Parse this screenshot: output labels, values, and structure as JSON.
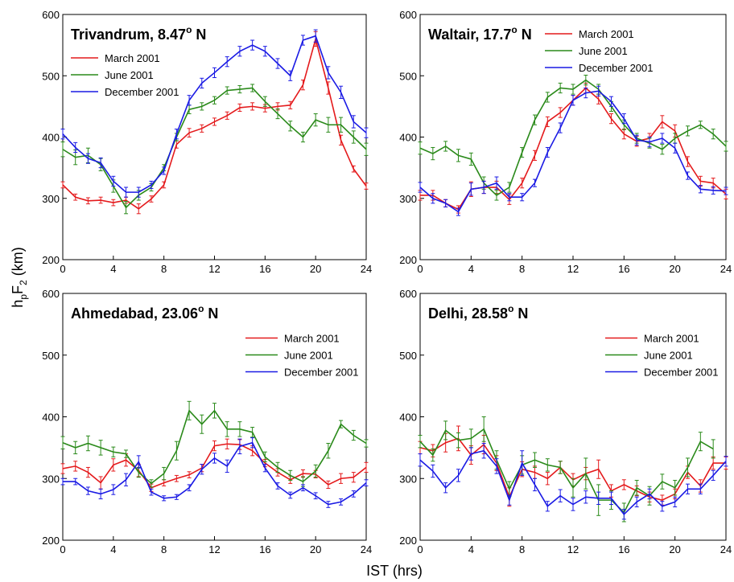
{
  "figure": {
    "xlabel": "IST (hrs)",
    "ylabel": [
      "h",
      "p",
      "F",
      "2",
      " (km)"
    ]
  },
  "chart_data": [
    {
      "type": "line",
      "title": [
        "Trivandrum, 8.47",
        "o",
        " N"
      ],
      "legend": "upper left",
      "x": [
        0,
        1,
        2,
        3,
        4,
        5,
        6,
        7,
        8,
        9,
        10,
        11,
        12,
        13,
        14,
        15,
        16,
        17,
        18,
        19,
        20,
        21,
        22,
        23,
        24
      ],
      "xlim": [
        0,
        24
      ],
      "xticks": [
        0,
        4,
        8,
        12,
        16,
        20,
        24
      ],
      "ylim": [
        200,
        600
      ],
      "yticks": [
        200,
        300,
        400,
        500,
        600
      ],
      "series": [
        {
          "name": "March 2001",
          "color": "#e41a1c",
          "values": [
            322,
            302,
            296,
            297,
            293,
            297,
            283,
            299,
            322,
            388,
            407,
            414,
            425,
            435,
            448,
            450,
            447,
            450,
            452,
            485,
            560,
            480,
            395,
            348,
            320
          ],
          "errors": [
            5,
            5,
            5,
            5,
            5,
            5,
            8,
            5,
            5,
            6,
            7,
            6,
            6,
            6,
            6,
            6,
            6,
            6,
            6,
            8,
            12,
            10,
            8,
            5,
            5
          ]
        },
        {
          "name": "June 2001",
          "color": "#2a8a1a",
          "values": [
            380,
            367,
            370,
            355,
            320,
            285,
            305,
            318,
            350,
            400,
            445,
            450,
            460,
            476,
            478,
            480,
            458,
            438,
            418,
            400,
            428,
            420,
            420,
            400,
            380
          ],
          "errors": [
            12,
            12,
            12,
            10,
            10,
            10,
            8,
            6,
            5,
            6,
            7,
            6,
            6,
            6,
            6,
            6,
            8,
            8,
            8,
            8,
            10,
            12,
            12,
            10,
            10
          ]
        },
        {
          "name": "December 2001",
          "color": "#1a1ae4",
          "values": [
            405,
            383,
            365,
            358,
            328,
            310,
            310,
            322,
            345,
            405,
            460,
            488,
            505,
            523,
            540,
            550,
            540,
            520,
            500,
            558,
            565,
            505,
            473,
            425,
            407
          ],
          "errors": [
            8,
            8,
            8,
            8,
            8,
            8,
            8,
            6,
            6,
            8,
            8,
            8,
            8,
            8,
            8,
            8,
            8,
            8,
            8,
            8,
            10,
            10,
            10,
            10,
            8
          ]
        }
      ]
    },
    {
      "type": "line",
      "title": [
        "Waltair, 17.7",
        "o",
        " N"
      ],
      "legend": "upper right",
      "x": [
        0,
        1,
        2,
        3,
        4,
        5,
        6,
        7,
        8,
        9,
        10,
        11,
        12,
        13,
        14,
        15,
        16,
        17,
        18,
        19,
        20,
        21,
        22,
        23,
        24
      ],
      "xlim": [
        0,
        24
      ],
      "xticks": [
        0,
        4,
        8,
        12,
        16,
        20,
        24
      ],
      "ylim": [
        200,
        600
      ],
      "yticks": [
        200,
        300,
        400,
        500,
        600
      ],
      "series": [
        {
          "name": "March 2001",
          "color": "#e41a1c",
          "values": [
            305,
            305,
            292,
            282,
            315,
            318,
            318,
            298,
            325,
            370,
            425,
            440,
            460,
            480,
            462,
            430,
            405,
            393,
            398,
            425,
            410,
            360,
            328,
            325,
            307
          ],
          "errors": [
            8,
            8,
            6,
            6,
            12,
            10,
            10,
            8,
            8,
            8,
            8,
            8,
            8,
            8,
            8,
            8,
            8,
            8,
            8,
            10,
            10,
            8,
            8,
            8,
            8
          ]
        },
        {
          "name": "June 2001",
          "color": "#2a8a1a",
          "values": [
            382,
            373,
            385,
            370,
            364,
            325,
            305,
            318,
            375,
            428,
            465,
            480,
            478,
            493,
            478,
            450,
            420,
            398,
            390,
            380,
            398,
            410,
            420,
            405,
            385
          ],
          "errors": [
            10,
            10,
            8,
            10,
            10,
            10,
            8,
            8,
            8,
            8,
            8,
            8,
            8,
            8,
            8,
            8,
            8,
            8,
            8,
            8,
            8,
            8,
            6,
            8,
            8
          ]
        },
        {
          "name": "December 2001",
          "color": "#1a1ae4",
          "values": [
            318,
            300,
            292,
            278,
            315,
            318,
            325,
            302,
            302,
            325,
            375,
            415,
            460,
            472,
            475,
            458,
            430,
            395,
            392,
            398,
            382,
            337,
            315,
            313,
            312
          ],
          "errors": [
            8,
            8,
            6,
            6,
            10,
            10,
            10,
            6,
            6,
            6,
            8,
            8,
            8,
            8,
            8,
            8,
            8,
            8,
            8,
            8,
            8,
            6,
            6,
            6,
            6
          ]
        }
      ]
    },
    {
      "type": "line",
      "title": [
        "Ahmedabad, 23.06",
        "o",
        " N"
      ],
      "legend": "center right",
      "x": [
        0,
        1,
        2,
        3,
        4,
        5,
        6,
        7,
        8,
        9,
        10,
        11,
        12,
        13,
        14,
        15,
        16,
        17,
        18,
        19,
        20,
        21,
        22,
        23,
        24
      ],
      "xlim": [
        0,
        24
      ],
      "xticks": [
        0,
        4,
        8,
        12,
        16,
        20,
        24
      ],
      "ylim": [
        200,
        600
      ],
      "yticks": [
        200,
        300,
        400,
        500,
        600
      ],
      "series": [
        {
          "name": "March 2001",
          "color": "#e41a1c",
          "values": [
            316,
            320,
            310,
            293,
            322,
            330,
            313,
            285,
            293,
            300,
            306,
            317,
            353,
            356,
            355,
            345,
            325,
            310,
            298,
            308,
            307,
            290,
            300,
            302,
            318
          ],
          "errors": [
            8,
            8,
            8,
            10,
            10,
            10,
            10,
            6,
            5,
            5,
            5,
            6,
            8,
            8,
            8,
            8,
            6,
            6,
            6,
            6,
            6,
            6,
            8,
            8,
            8
          ]
        },
        {
          "name": "June 2001",
          "color": "#2a8a1a",
          "values": [
            358,
            350,
            357,
            350,
            343,
            340,
            310,
            292,
            308,
            345,
            410,
            388,
            410,
            380,
            380,
            375,
            335,
            318,
            305,
            295,
            312,
            345,
            388,
            370,
            357
          ],
          "errors": [
            10,
            10,
            12,
            12,
            8,
            6,
            8,
            6,
            10,
            15,
            15,
            15,
            12,
            12,
            12,
            8,
            8,
            8,
            8,
            8,
            10,
            12,
            6,
            8,
            6
          ]
        },
        {
          "name": "December 2001",
          "color": "#1a1ae4",
          "values": [
            295,
            295,
            280,
            275,
            282,
            298,
            327,
            278,
            268,
            270,
            285,
            315,
            333,
            320,
            352,
            358,
            317,
            288,
            273,
            285,
            272,
            258,
            262,
            275,
            293
          ],
          "errors": [
            5,
            5,
            6,
            8,
            8,
            10,
            10,
            5,
            4,
            4,
            5,
            8,
            8,
            10,
            12,
            8,
            6,
            5,
            5,
            5,
            5,
            5,
            5,
            5,
            5
          ]
        }
      ]
    },
    {
      "type": "line",
      "title": [
        "Delhi, 28.58",
        "o",
        " N"
      ],
      "legend": "center right",
      "x": [
        0,
        1,
        2,
        3,
        4,
        5,
        6,
        7,
        8,
        9,
        10,
        11,
        12,
        13,
        14,
        15,
        16,
        17,
        18,
        19,
        20,
        21,
        22,
        23,
        24
      ],
      "xlim": [
        0,
        24
      ],
      "xticks": [
        0,
        4,
        8,
        12,
        16,
        20,
        24
      ],
      "ylim": [
        200,
        600
      ],
      "yticks": [
        200,
        300,
        400,
        500,
        600
      ],
      "series": [
        {
          "name": "March 2001",
          "color": "#e41a1c",
          "values": [
            350,
            345,
            358,
            365,
            338,
            355,
            325,
            270,
            315,
            310,
            300,
            318,
            298,
            308,
            315,
            280,
            290,
            280,
            270,
            265,
            275,
            310,
            288,
            325,
            325
          ],
          "errors": [
            10,
            10,
            15,
            20,
            15,
            15,
            12,
            15,
            12,
            10,
            10,
            10,
            10,
            10,
            15,
            10,
            8,
            8,
            8,
            8,
            8,
            10,
            10,
            10,
            10
          ]
        },
        {
          "name": "June 2001",
          "color": "#2a8a1a",
          "values": [
            360,
            338,
            378,
            362,
            365,
            380,
            330,
            283,
            322,
            330,
            322,
            318,
            285,
            308,
            265,
            265,
            245,
            285,
            272,
            295,
            285,
            318,
            360,
            348,
            null
          ],
          "errors": [
            10,
            10,
            15,
            12,
            15,
            20,
            15,
            12,
            15,
            12,
            10,
            10,
            15,
            25,
            25,
            15,
            15,
            12,
            15,
            12,
            12,
            15,
            15,
            15,
            null
          ]
        },
        {
          "name": "December 2001",
          "color": "#1a1ae4",
          "values": [
            330,
            312,
            285,
            305,
            340,
            345,
            320,
            265,
            325,
            290,
            255,
            272,
            258,
            270,
            268,
            268,
            242,
            262,
            275,
            255,
            262,
            283,
            283,
            305,
            328
          ],
          "errors": [
            10,
            10,
            8,
            10,
            10,
            12,
            12,
            8,
            20,
            10,
            8,
            10,
            10,
            10,
            10,
            10,
            8,
            8,
            8,
            8,
            8,
            8,
            8,
            8,
            8
          ]
        }
      ]
    }
  ]
}
